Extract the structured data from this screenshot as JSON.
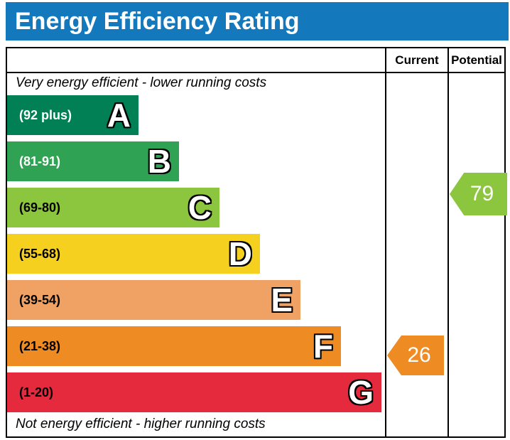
{
  "header": {
    "title": "Energy Efficiency Rating",
    "background_color": "#1478bd"
  },
  "table": {
    "columns": {
      "current_label": "Current",
      "potential_label": "Potential"
    },
    "top_note": "Very energy efficient - lower running costs",
    "bottom_note": "Not energy efficient - higher running costs"
  },
  "bands": [
    {
      "letter": "A",
      "range": "(92 plus)",
      "color": "#008054",
      "range_color": "#ffffff",
      "width_css": "185px"
    },
    {
      "letter": "B",
      "range": "(81-91)",
      "color": "#2fa353",
      "range_color": "#ffffff",
      "width_css": "242px"
    },
    {
      "letter": "C",
      "range": "(69-80)",
      "color": "#8cc63f",
      "range_color": "#000000",
      "width_css": "299px"
    },
    {
      "letter": "D",
      "range": "(55-68)",
      "color": "#f6d01e",
      "range_color": "#000000",
      "width_css": "356px"
    },
    {
      "letter": "E",
      "range": "(39-54)",
      "color": "#f0a264",
      "range_color": "#000000",
      "width_css": "413px"
    },
    {
      "letter": "F",
      "range": "(21-38)",
      "color": "#ee8b23",
      "range_color": "#000000",
      "width_css": "470px"
    },
    {
      "letter": "G",
      "range": "(1-20)",
      "color": "#e52a3d",
      "range_color": "#000000",
      "width_css": "527px"
    }
  ],
  "ratings": {
    "current": {
      "value": "26",
      "color": "#ee8b23",
      "band": "F"
    },
    "potential": {
      "value": "79",
      "color": "#8cc63f",
      "band": "C"
    }
  },
  "chart_data": {
    "type": "bar",
    "title": "Energy Efficiency Rating",
    "categories": [
      "A (92 plus)",
      "B (81-91)",
      "C (69-80)",
      "D (55-68)",
      "E (39-54)",
      "F (21-38)",
      "G (1-20)"
    ],
    "band_colors": [
      "#008054",
      "#2fa353",
      "#8cc63f",
      "#f6d01e",
      "#f0a264",
      "#ee8b23",
      "#e52a3d"
    ],
    "band_ranges": [
      [
        92,
        100
      ],
      [
        81,
        91
      ],
      [
        69,
        80
      ],
      [
        55,
        68
      ],
      [
        39,
        54
      ],
      [
        21,
        38
      ],
      [
        1,
        20
      ]
    ],
    "series": [
      {
        "name": "Current",
        "value": 26,
        "band": "F",
        "color": "#ee8b23"
      },
      {
        "name": "Potential",
        "value": 79,
        "band": "C",
        "color": "#8cc63f"
      }
    ],
    "annotations": [
      "Very energy efficient - lower running costs",
      "Not energy efficient - higher running costs"
    ],
    "legend_position": "none",
    "grid": false
  }
}
